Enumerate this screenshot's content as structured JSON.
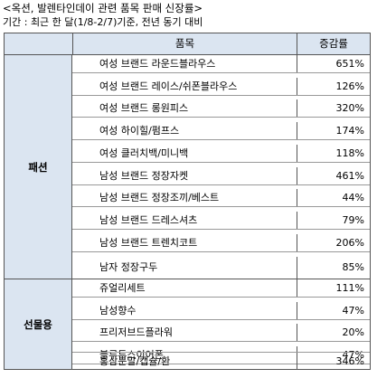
{
  "title": "<옥션, 발렌타인데이 관련 품목 판매 신장률>",
  "subtitle": "기간 : 최근 한 달(1/8-2/7)기준, 전년 동기 대비",
  "header": {
    "item": "품목",
    "rate": "증감률"
  },
  "groups": [
    {
      "name": "패션",
      "rows": [
        {
          "item": "여성 브랜드 라운드블라우스",
          "rate": "651%"
        },
        {
          "item": "여성 브랜드 레이스/쉬폰블라우스",
          "rate": "126%"
        },
        {
          "item": "여성 브랜드 롱원피스",
          "rate": "320%"
        },
        {
          "item": "여성 하이힐/펌프스",
          "rate": "174%"
        },
        {
          "item": "여성 클러치백/미니백",
          "rate": "118%"
        },
        {
          "item": "남성 브랜드 정장자켓",
          "rate": "461%"
        },
        {
          "item": "남성 브랜드 정장조끼/베스트",
          "rate": "44%"
        },
        {
          "item": "남성 브랜드 드레스셔츠",
          "rate": "79%"
        },
        {
          "item": "남성 브랜드 트렌치코트",
          "rate": "206%"
        },
        {
          "item": "남자 정장구두",
          "rate": "85%"
        }
      ]
    },
    {
      "name": "선물용",
      "rows": [
        {
          "item": "쥬얼리세트",
          "rate": "111%"
        },
        {
          "item": "남성향수",
          "rate": "47%"
        },
        {
          "item": "프리저브드플라워",
          "rate": "20%"
        },
        {
          "item": "블루투스이어폰",
          "rate": "47%"
        },
        {
          "item": "홍삼분말/캡슐/환",
          "rate": "346%"
        }
      ]
    }
  ]
}
